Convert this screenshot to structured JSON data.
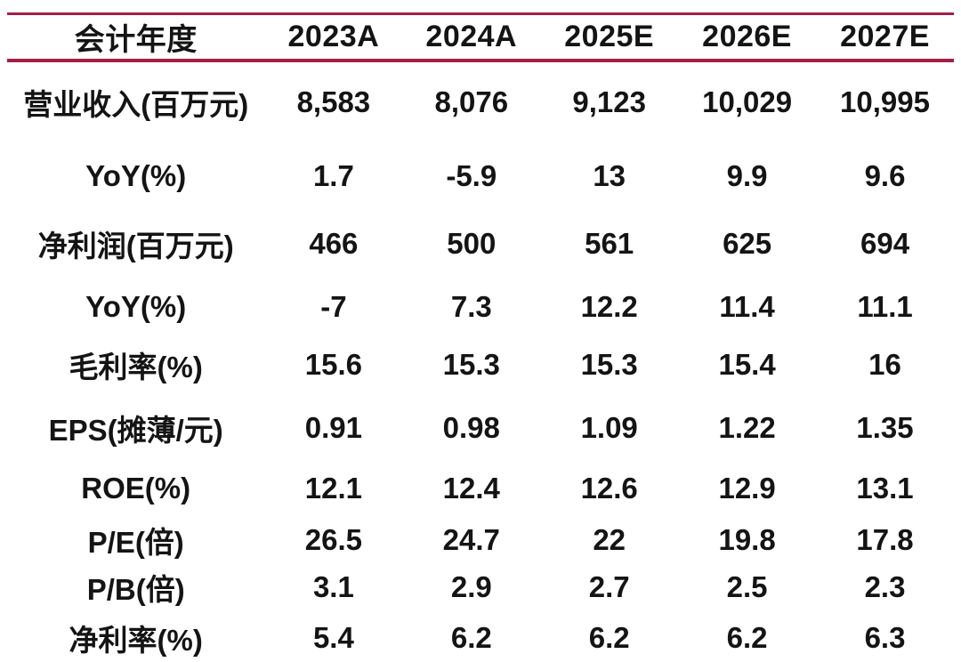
{
  "colors": {
    "accent_rule": "#a21f45",
    "text": "#141414",
    "background": "#ffffff"
  },
  "table": {
    "columns": [
      "会计年度",
      "2023A",
      "2024A",
      "2025E",
      "2026E",
      "2027E"
    ],
    "rows": [
      {
        "label": "营业收入(百万元)",
        "values": [
          "8,583",
          "8,076",
          "9,123",
          "10,029",
          "10,995"
        ]
      },
      {
        "label": "YoY(%)",
        "values": [
          "1.7",
          "-5.9",
          "13",
          "9.9",
          "9.6"
        ]
      },
      {
        "label": "净利润(百万元)",
        "values": [
          "466",
          "500",
          "561",
          "625",
          "694"
        ]
      },
      {
        "label": "YoY(%)",
        "values": [
          "-7",
          "7.3",
          "12.2",
          "11.4",
          "11.1"
        ]
      },
      {
        "label": "毛利率(%)",
        "values": [
          "15.6",
          "15.3",
          "15.3",
          "15.4",
          "16"
        ]
      },
      {
        "label": "EPS(摊薄/元)",
        "values": [
          "0.91",
          "0.98",
          "1.09",
          "1.22",
          "1.35"
        ]
      },
      {
        "label": "ROE(%)",
        "values": [
          "12.1",
          "12.4",
          "12.6",
          "12.9",
          "13.1"
        ]
      },
      {
        "label": "P/E(倍)",
        "values": [
          "26.5",
          "24.7",
          "22",
          "19.8",
          "17.8"
        ]
      },
      {
        "label": "P/B(倍)",
        "values": [
          "3.1",
          "2.9",
          "2.7",
          "2.5",
          "2.3"
        ]
      },
      {
        "label": "净利率(%)",
        "values": [
          "5.4",
          "6.2",
          "6.2",
          "6.2",
          "6.3"
        ]
      }
    ]
  }
}
